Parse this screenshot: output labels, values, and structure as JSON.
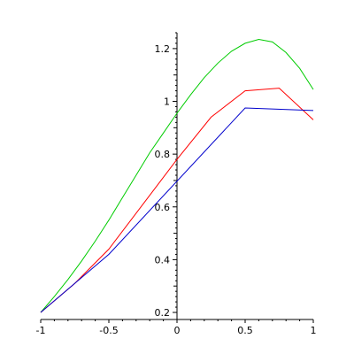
{
  "chart_data": {
    "type": "line",
    "title": "",
    "xlabel": "",
    "ylabel": "",
    "xlim": [
      -1,
      1
    ],
    "ylim": [
      0.19,
      1.26
    ],
    "grid": false,
    "legend": "none",
    "x_tick_labels": [
      {
        "value": -1,
        "label": "-1"
      },
      {
        "value": -0.5,
        "label": "-0.5"
      },
      {
        "value": 0,
        "label": "0"
      },
      {
        "value": 0.5,
        "label": "0.5"
      },
      {
        "value": 1,
        "label": "1"
      }
    ],
    "y_tick_labels": [
      {
        "value": 0.2,
        "label": "0.2"
      },
      {
        "value": 0.4,
        "label": "0.4"
      },
      {
        "value": 0.6,
        "label": "0.6"
      },
      {
        "value": 0.8,
        "label": "0.8"
      },
      {
        "value": 1.0,
        "label": "1"
      },
      {
        "value": 1.2,
        "label": "1.2"
      }
    ],
    "series": [
      {
        "color": "#00cc00",
        "x": [
          -1,
          -0.9,
          -0.8,
          -0.7,
          -0.6,
          -0.5,
          -0.4,
          -0.3,
          -0.2,
          -0.1,
          0,
          0.1,
          0.2,
          0.3,
          0.4,
          0.5,
          0.6,
          0.7,
          0.8,
          0.9,
          1.0
        ],
        "y": [
          0.2,
          0.26,
          0.325,
          0.395,
          0.47,
          0.55,
          0.635,
          0.72,
          0.805,
          0.88,
          0.955,
          1.025,
          1.09,
          1.145,
          1.19,
          1.22,
          1.235,
          1.225,
          1.185,
          1.125,
          1.045
        ]
      },
      {
        "color": "#ff0000",
        "x": [
          -1,
          -0.75,
          -0.5,
          -0.25,
          0,
          0.25,
          0.5,
          0.75,
          1.0
        ],
        "y": [
          0.2,
          0.31,
          0.44,
          0.61,
          0.78,
          0.94,
          1.04,
          1.05,
          0.93
        ]
      },
      {
        "color": "#0000cc",
        "x": [
          -1,
          -0.5,
          0.5,
          1.0
        ],
        "y": [
          0.2,
          0.42,
          0.975,
          0.965
        ]
      }
    ]
  }
}
